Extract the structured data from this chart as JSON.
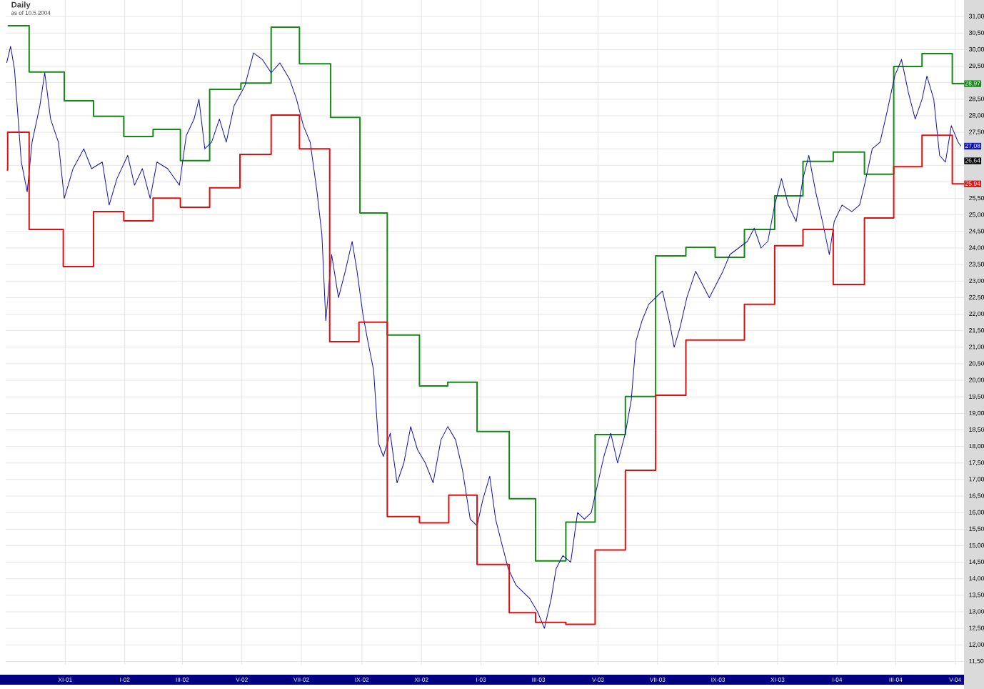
{
  "chart_data": {
    "type": "line",
    "title": "Daily",
    "subtitle": "as of 10.5.2004",
    "xlim": [
      "2001-09-01",
      "2004-05-10"
    ],
    "ylim": [
      11.4,
      31.5
    ],
    "grid": true,
    "xticks": [
      {
        "value": "2001-11-01",
        "label": "XI-01"
      },
      {
        "value": "2002-01-01",
        "label": "I-02"
      },
      {
        "value": "2002-03-01",
        "label": "III-02"
      },
      {
        "value": "2002-05-01",
        "label": "V-02"
      },
      {
        "value": "2002-07-01",
        "label": "VII-02"
      },
      {
        "value": "2002-09-01",
        "label": "IX-02"
      },
      {
        "value": "2002-11-01",
        "label": "XI-02"
      },
      {
        "value": "2003-01-01",
        "label": "I-03"
      },
      {
        "value": "2003-03-01",
        "label": "III-03"
      },
      {
        "value": "2003-05-01",
        "label": "V-03"
      },
      {
        "value": "2003-07-01",
        "label": "VII-03"
      },
      {
        "value": "2003-09-01",
        "label": "IX-03"
      },
      {
        "value": "2003-11-01",
        "label": "XI-03"
      },
      {
        "value": "2004-01-01",
        "label": "I-04"
      },
      {
        "value": "2004-03-01",
        "label": "III-04"
      },
      {
        "value": "2004-05-01",
        "label": "V-04"
      }
    ],
    "yticks": [
      {
        "value": 11.5,
        "label": "11,50"
      },
      {
        "value": 12,
        "label": "12,00"
      },
      {
        "value": 12.5,
        "label": "12,50"
      },
      {
        "value": 13,
        "label": "13,00"
      },
      {
        "value": 13.5,
        "label": "13,50"
      },
      {
        "value": 14,
        "label": "14,00"
      },
      {
        "value": 14.5,
        "label": "14,50"
      },
      {
        "value": 15,
        "label": "15,00"
      },
      {
        "value": 15.5,
        "label": "15,50"
      },
      {
        "value": 16,
        "label": "16,00"
      },
      {
        "value": 16.5,
        "label": "16,50"
      },
      {
        "value": 17,
        "label": "17,00"
      },
      {
        "value": 17.5,
        "label": "17,50"
      },
      {
        "value": 18,
        "label": "18,00"
      },
      {
        "value": 18.5,
        "label": "18,50"
      },
      {
        "value": 19,
        "label": "19,00"
      },
      {
        "value": 19.5,
        "label": "19,50"
      },
      {
        "value": 20,
        "label": "20,00"
      },
      {
        "value": 20.5,
        "label": "20,50"
      },
      {
        "value": 21,
        "label": "21,00"
      },
      {
        "value": 21.5,
        "label": "21,50"
      },
      {
        "value": 22,
        "label": "22,00"
      },
      {
        "value": 22.5,
        "label": "22,50"
      },
      {
        "value": 23,
        "label": "23,00"
      },
      {
        "value": 23.5,
        "label": "23,50"
      },
      {
        "value": 24,
        "label": "24,00"
      },
      {
        "value": 24.5,
        "label": "24,50"
      },
      {
        "value": 25,
        "label": "25,00"
      },
      {
        "value": 25.5,
        "label": "25,50"
      },
      {
        "value": 26,
        "label": null
      },
      {
        "value": 26.5,
        "label": null
      },
      {
        "value": 27,
        "label": null
      },
      {
        "value": 27.5,
        "label": "27,50"
      },
      {
        "value": 28,
        "label": "28,00"
      },
      {
        "value": 28.5,
        "label": "28,50"
      },
      {
        "value": 29,
        "label": null
      },
      {
        "value": 29.5,
        "label": "29,50"
      },
      {
        "value": 30,
        "label": "30,00"
      },
      {
        "value": 30.5,
        "label": "30,50"
      },
      {
        "value": 31,
        "label": "31,00"
      }
    ],
    "series": [
      {
        "type": "step",
        "color": "#138a13",
        "x": [
          "2001-09-03",
          "2001-09-25",
          "2001-10-31",
          "2001-11-30",
          "2001-12-31",
          "2002-01-30",
          "2002-02-27",
          "2002-03-29",
          "2002-04-30",
          "2002-05-31",
          "2002-06-29",
          "2002-07-31",
          "2002-08-30",
          "2002-09-27",
          "2002-10-30",
          "2002-11-28",
          "2002-12-28",
          "2003-01-30",
          "2003-02-26",
          "2003-03-29",
          "2003-04-28",
          "2003-05-29",
          "2003-06-29",
          "2003-07-30",
          "2003-08-29",
          "2003-09-28",
          "2003-10-29",
          "2003-11-27",
          "2003-12-28",
          "2004-01-29",
          "2004-02-28",
          "2004-03-28",
          "2004-04-28",
          "2004-05-10"
        ],
        "values": [
          30.72,
          29.32,
          28.45,
          27.98,
          27.37,
          27.59,
          26.64,
          28.8,
          28.99,
          30.68,
          29.57,
          27.95,
          25.06,
          21.37,
          19.83,
          19.94,
          18.45,
          16.42,
          14.54,
          15.71,
          18.36,
          19.51,
          23.76,
          24.02,
          23.72,
          24.56,
          25.58,
          26.62,
          26.9,
          26.23,
          29.49,
          29.88,
          28.97,
          28.97
        ]
      },
      {
        "color": "#1010b0",
        "x": [
          "2001-09-02",
          "2001-09-06",
          "2001-09-10",
          "2001-09-17",
          "2001-09-23",
          "2001-09-28",
          "2001-10-06",
          "2001-10-11",
          "2001-10-17",
          "2001-10-25",
          "2001-10-31",
          "2001-11-09",
          "2001-11-20",
          "2001-11-28",
          "2001-12-09",
          "2001-12-16",
          "2001-12-24",
          "2002-01-04",
          "2002-01-11",
          "2002-01-19",
          "2002-01-27",
          "2002-02-03",
          "2002-02-14",
          "2002-02-26",
          "2002-03-05",
          "2002-03-13",
          "2002-03-18",
          "2002-03-24",
          "2002-03-31",
          "2002-04-08",
          "2002-04-15",
          "2002-04-23",
          "2002-05-04",
          "2002-05-13",
          "2002-05-22",
          "2002-05-31",
          "2002-06-09",
          "2002-06-19",
          "2002-06-26",
          "2002-07-03",
          "2002-07-10",
          "2002-07-17",
          "2002-07-22",
          "2002-07-26",
          "2002-08-01",
          "2002-08-08",
          "2002-08-15",
          "2002-08-22",
          "2002-08-27",
          "2002-09-02",
          "2002-09-07",
          "2002-09-13",
          "2002-09-18",
          "2002-09-23",
          "2002-09-30",
          "2002-10-07",
          "2002-10-14",
          "2002-10-21",
          "2002-10-28",
          "2002-11-05",
          "2002-11-13",
          "2002-11-21",
          "2002-11-28",
          "2002-12-06",
          "2002-12-13",
          "2002-12-21",
          "2002-12-28",
          "2003-01-03",
          "2003-01-10",
          "2003-01-16",
          "2003-01-22",
          "2003-01-29",
          "2003-02-06",
          "2003-02-13",
          "2003-02-20",
          "2003-02-28",
          "2003-03-07",
          "2003-03-14",
          "2003-03-19",
          "2003-03-26",
          "2003-04-03",
          "2003-04-10",
          "2003-04-17",
          "2003-04-24",
          "2003-05-07",
          "2003-05-14",
          "2003-05-21",
          "2003-05-29",
          "2003-06-04",
          "2003-06-09",
          "2003-06-15",
          "2003-06-22",
          "2003-06-29",
          "2003-07-06",
          "2003-07-13",
          "2003-07-18",
          "2003-07-24",
          "2003-07-31",
          "2003-08-09",
          "2003-08-16",
          "2003-08-23",
          "2003-08-30",
          "2003-09-06",
          "2003-09-13",
          "2003-09-22",
          "2003-10-01",
          "2003-10-08",
          "2003-10-15",
          "2003-10-22",
          "2003-10-29",
          "2003-11-05",
          "2003-11-12",
          "2003-11-20",
          "2003-11-27",
          "2003-12-03",
          "2003-12-10",
          "2003-12-17",
          "2003-12-24",
          "2003-12-29",
          "2004-01-06",
          "2004-01-16",
          "2004-01-24",
          "2004-01-29",
          "2004-02-06",
          "2004-02-14",
          "2004-02-21",
          "2004-02-29",
          "2004-03-07",
          "2004-03-14",
          "2004-03-21",
          "2004-03-28",
          "2004-04-02",
          "2004-04-09",
          "2004-04-15",
          "2004-04-21",
          "2004-04-27",
          "2004-05-04",
          "2004-05-07"
        ],
        "values": [
          29.6,
          30.1,
          29.4,
          26.6,
          25.7,
          27.2,
          28.3,
          29.3,
          27.9,
          27.2,
          25.5,
          26.4,
          27.0,
          26.4,
          26.6,
          25.3,
          26.1,
          26.8,
          25.9,
          26.4,
          25.5,
          26.6,
          26.4,
          25.9,
          27.4,
          27.9,
          28.5,
          27.0,
          27.2,
          27.9,
          27.2,
          28.3,
          28.9,
          29.9,
          29.7,
          29.3,
          29.6,
          29.1,
          28.5,
          27.7,
          27.2,
          25.7,
          24.4,
          21.8,
          23.8,
          22.5,
          23.3,
          24.2,
          23.3,
          22.0,
          21.2,
          20.3,
          18.1,
          17.7,
          18.4,
          16.9,
          17.5,
          18.6,
          17.9,
          17.5,
          16.9,
          18.2,
          18.6,
          18.2,
          17.3,
          15.8,
          15.6,
          16.4,
          17.1,
          15.8,
          15.1,
          14.3,
          13.8,
          13.6,
          13.4,
          13.0,
          12.5,
          13.4,
          14.3,
          14.7,
          14.5,
          16.0,
          15.8,
          16.0,
          17.7,
          18.4,
          17.5,
          18.4,
          19.4,
          21.2,
          21.8,
          22.3,
          22.5,
          22.7,
          21.8,
          21.0,
          21.6,
          22.5,
          23.3,
          22.9,
          22.5,
          22.9,
          23.3,
          23.8,
          24.0,
          24.2,
          24.6,
          24.0,
          24.2,
          25.3,
          26.1,
          25.3,
          24.8,
          26.1,
          26.8,
          25.7,
          24.8,
          23.8,
          24.8,
          25.3,
          25.1,
          25.3,
          25.9,
          27.0,
          27.2,
          28.1,
          29.2,
          29.7,
          28.7,
          27.9,
          28.5,
          29.2,
          28.5,
          26.8,
          26.6,
          27.7,
          27.2,
          27.08
        ]
      },
      {
        "type": "step",
        "color": "#e01010",
        "x": [
          "2001-09-02",
          "2001-09-03",
          "2001-09-25",
          "2001-10-30",
          "2001-11-30",
          "2001-12-31",
          "2002-01-30",
          "2002-02-27",
          "2002-03-29",
          "2002-04-29",
          "2002-05-31",
          "2002-06-29",
          "2002-07-30",
          "2002-08-29",
          "2002-09-27",
          "2002-10-30",
          "2002-11-29",
          "2002-12-28",
          "2003-01-30",
          "2003-02-26",
          "2003-03-29",
          "2003-04-28",
          "2003-05-29",
          "2003-06-29",
          "2003-07-30",
          "2003-09-28",
          "2003-10-29",
          "2003-11-27",
          "2003-12-28",
          "2004-01-29",
          "2004-02-28",
          "2004-03-28",
          "2004-04-28",
          "2004-05-10"
        ],
        "values": [
          26.36,
          27.5,
          24.56,
          23.44,
          25.1,
          24.82,
          25.51,
          25.23,
          25.82,
          26.83,
          28.02,
          27.0,
          21.17,
          21.76,
          15.88,
          15.69,
          16.53,
          14.43,
          12.97,
          12.68,
          12.62,
          14.87,
          17.28,
          19.55,
          21.22,
          22.3,
          24.07,
          24.56,
          22.9,
          24.91,
          26.46,
          27.41,
          25.94,
          25.94
        ]
      }
    ],
    "annotations": [
      {
        "text": "28,97",
        "x": "2004-05-10",
        "y": 28.97
      },
      {
        "text": "27,08",
        "x": "2004-05-10",
        "y": 27.08
      },
      {
        "text": "25,94",
        "x": "2004-05-10",
        "y": 25.94
      },
      "26,64"
    ]
  }
}
